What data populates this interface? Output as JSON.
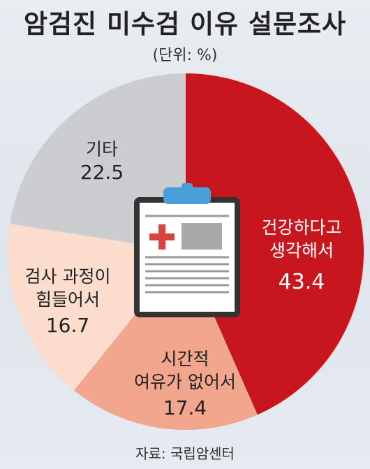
{
  "title": "암검진 미수검 이유 설문조사",
  "unit": "(단위: %)",
  "source": "자료: 국립암센터",
  "chart_data": {
    "type": "pie",
    "slices": [
      {
        "label_lines": [
          "건강하다고",
          "생각해서"
        ],
        "value": 43.4,
        "value_text": "43.4",
        "color": "#c8161e",
        "text_color": "#ffffff"
      },
      {
        "label_lines": [
          "시간적",
          "여유가 없어서"
        ],
        "value": 17.4,
        "value_text": "17.4",
        "color": "#f2a68d",
        "text_color": "#222222"
      },
      {
        "label_lines": [
          "검사 과정이",
          "힘들어서"
        ],
        "value": 16.7,
        "value_text": "16.7",
        "color": "#fbdccd",
        "text_color": "#222222"
      },
      {
        "label_lines": [
          "기타"
        ],
        "value": 22.5,
        "value_text": "22.5",
        "color": "#cbcdd1",
        "text_color": "#222222"
      }
    ]
  },
  "icon": "clipboard-medical-icon"
}
